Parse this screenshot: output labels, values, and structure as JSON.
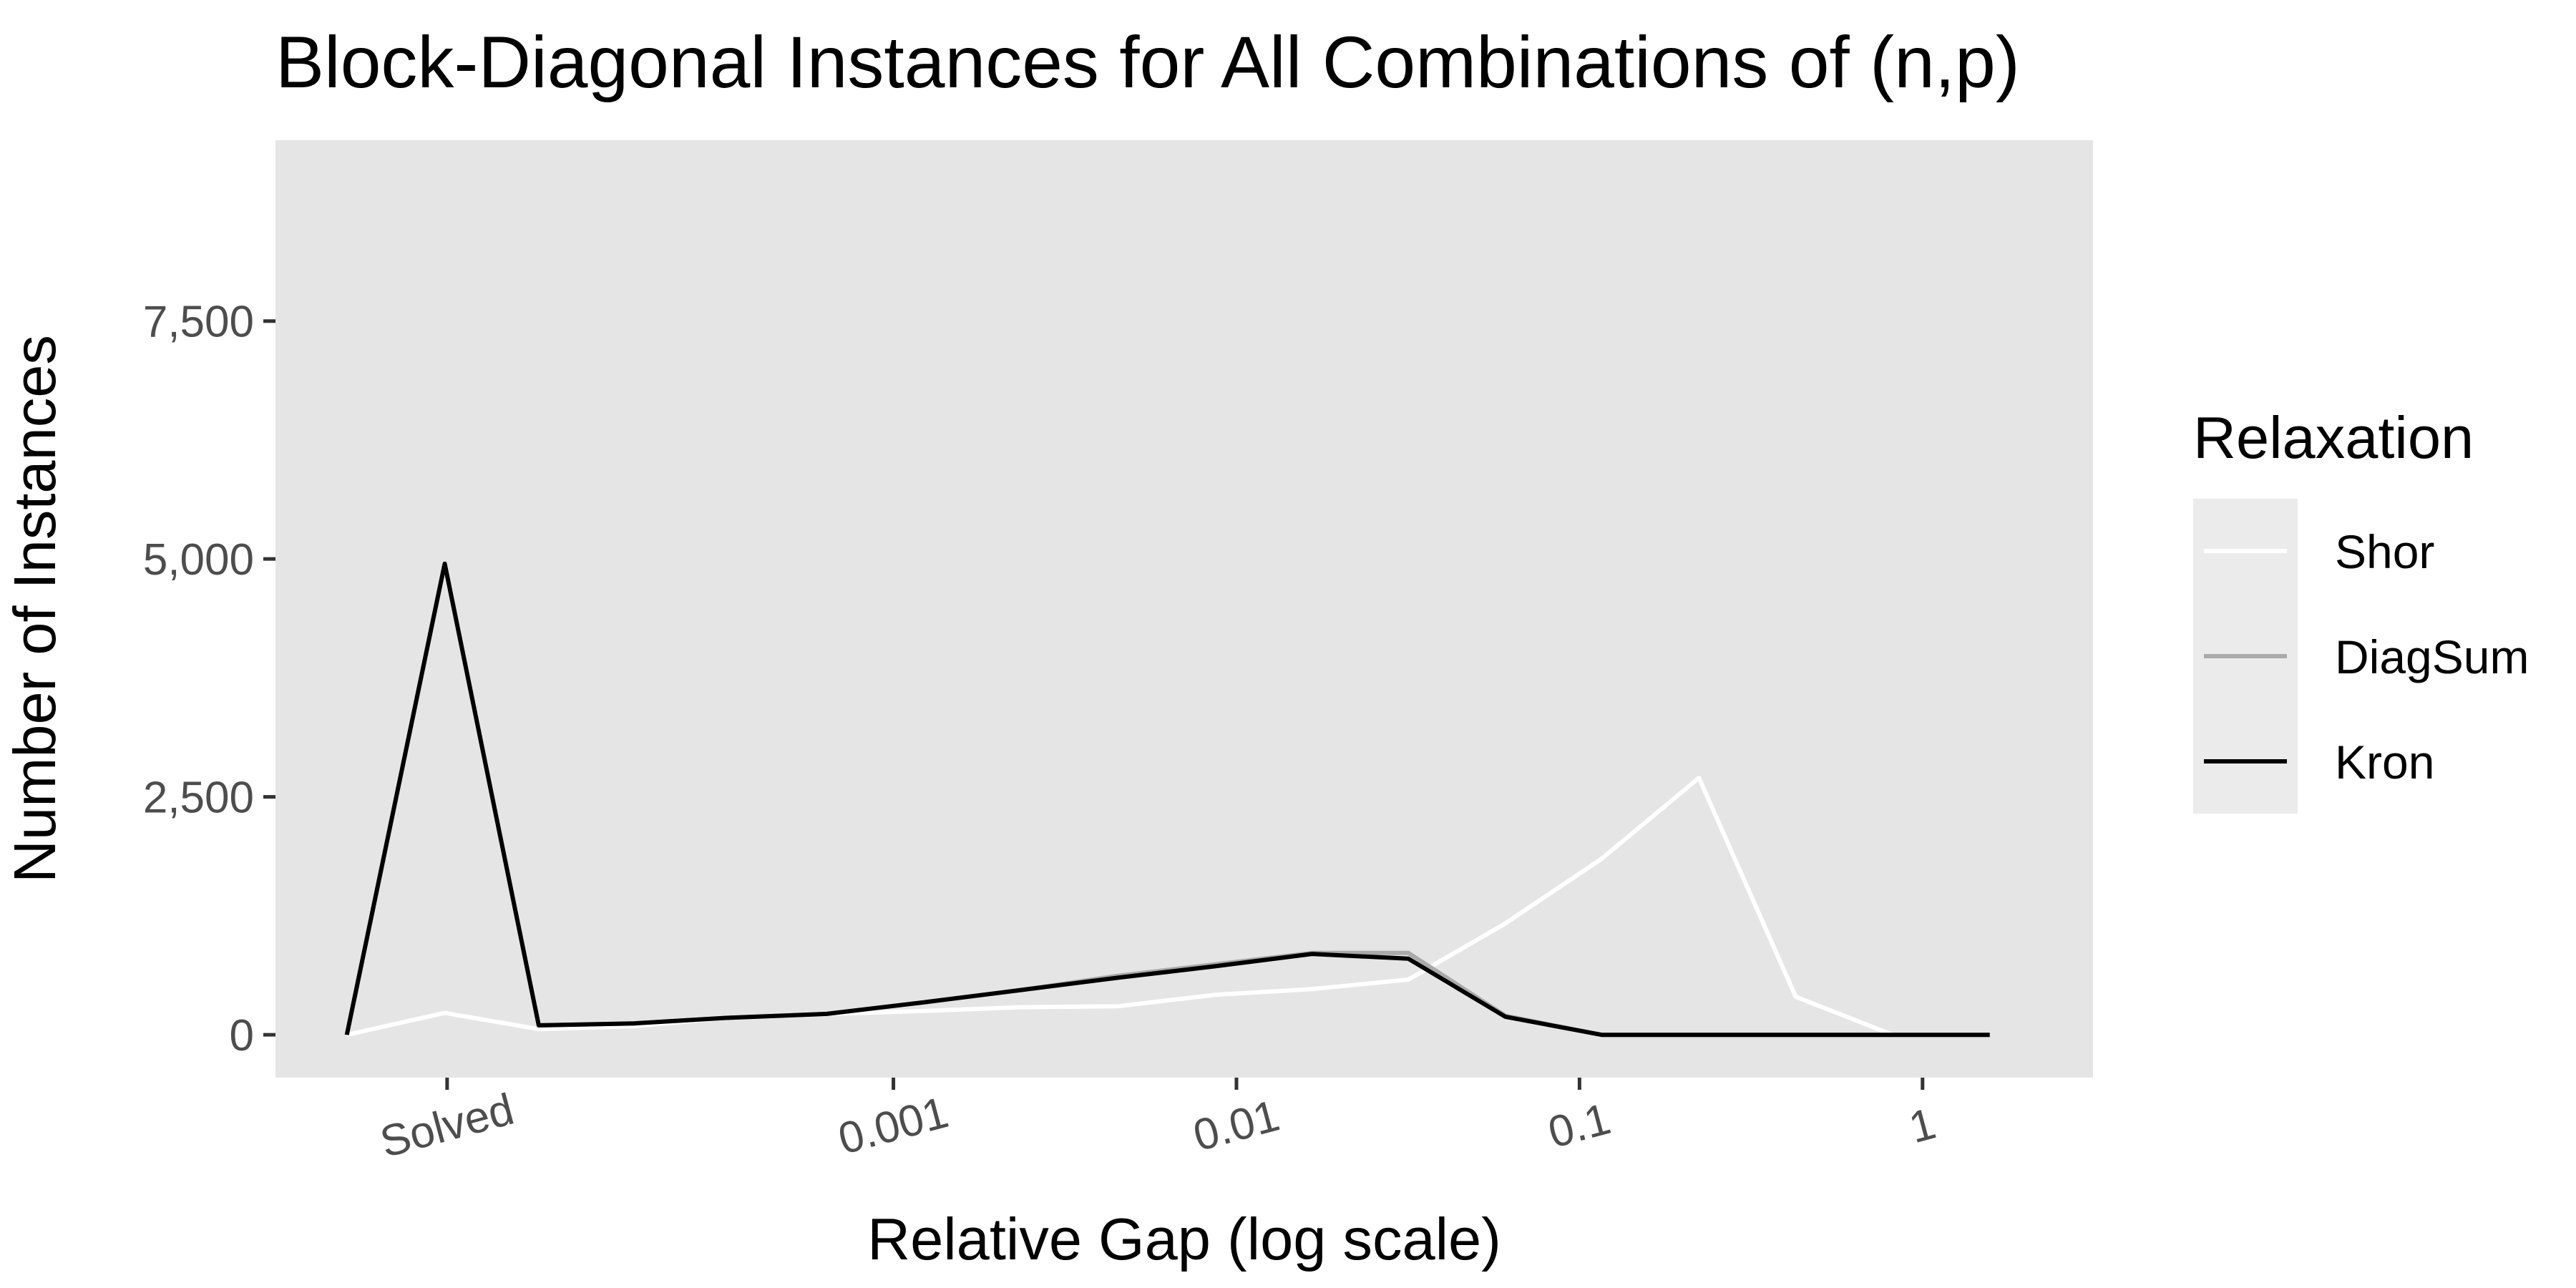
{
  "chart_data": {
    "type": "line",
    "title": "Block-Diagonal Instances for All Combinations of (n,p)",
    "xlabel": "Relative Gap (log scale)",
    "ylabel": "Number of Instances",
    "x_scale": "log10",
    "x_tick_labels": [
      {
        "label": "Solved",
        "value": 5e-05
      },
      {
        "label": "0.001",
        "value": 0.001
      },
      {
        "label": "0.01",
        "value": 0.01
      },
      {
        "label": "0.1",
        "value": 0.1
      },
      {
        "label": "1",
        "value": 1
      }
    ],
    "y_ticks": [
      {
        "label": "0",
        "value": 0
      },
      {
        "label": "2,500",
        "value": 2500
      },
      {
        "label": "5,000",
        "value": 5000
      },
      {
        "label": "7,500",
        "value": 7500
      }
    ],
    "xlim": [
      1.58e-05,
      3.14
    ],
    "ylim": [
      -450,
      9400
    ],
    "grid": false,
    "legend": {
      "title": "Relaxation",
      "position": "right"
    },
    "colors": {
      "panel_background": "#e5e5e5",
      "legend_key_background": "#ebebeb",
      "tick_mark": "#333333",
      "tick_label": "#4d4d4d"
    },
    "series": [
      {
        "name": "Shor",
        "color": "#ffffff",
        "x": [
          2.55e-05,
          4.92e-05,
          9.25e-05,
          0.000175,
          0.000335,
          0.00064,
          0.00122,
          0.00235,
          0.00451,
          0.00865,
          0.0166,
          0.0317,
          0.0608,
          0.116,
          0.223,
          0.427,
          0.818,
          1.57
        ],
        "y": [
          0,
          230,
          60,
          90,
          180,
          220,
          250,
          290,
          300,
          420,
          480,
          580,
          1170,
          1850,
          2700,
          400,
          0,
          0
        ]
      },
      {
        "name": "DiagSum",
        "color": "#aaaaaa",
        "x": [
          2.55e-05,
          4.92e-05,
          9.25e-05,
          0.000175,
          0.000335,
          0.00064,
          0.00122,
          0.00235,
          0.00451,
          0.00865,
          0.0166,
          0.0317,
          0.0608,
          0.116,
          0.223,
          0.427,
          0.818,
          1.57
        ],
        "y": [
          0,
          4950,
          100,
          120,
          180,
          220,
          340,
          470,
          620,
          740,
          860,
          860,
          200,
          0,
          0,
          0,
          0,
          0
        ]
      },
      {
        "name": "Kron",
        "color": "#000000",
        "x": [
          2.55e-05,
          4.92e-05,
          9.25e-05,
          0.000175,
          0.000335,
          0.00064,
          0.00122,
          0.00235,
          0.00451,
          0.00865,
          0.0166,
          0.0317,
          0.0608,
          0.116,
          0.223,
          0.427,
          0.818,
          1.57
        ],
        "y": [
          0,
          4950,
          100,
          120,
          180,
          220,
          340,
          470,
          600,
          720,
          850,
          800,
          190,
          0,
          0,
          0,
          0,
          0
        ]
      }
    ]
  }
}
